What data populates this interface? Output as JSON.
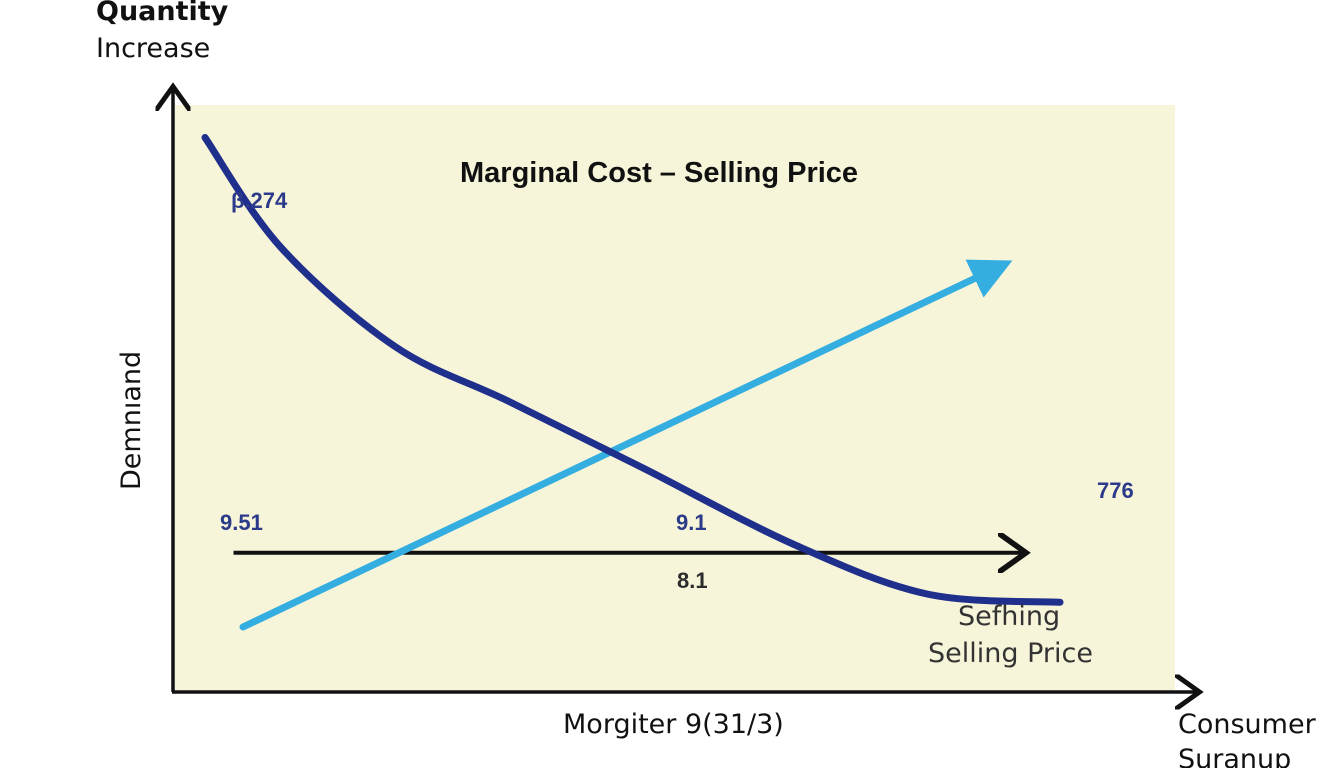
{
  "chart_data": {
    "type": "line",
    "title": "Marginal Cost – Selling Price",
    "y_axis_label_top": "Quantity",
    "y_axis_label_sub": "Increase",
    "y_axis_label_side": "Demnıand",
    "x_axis_label": "Morgiter 9(31/3)",
    "x_axis_corner_label_1": "Consumer",
    "x_axis_corner_label_2": "Suranup",
    "annotations": {
      "demand_start": "β.274",
      "demand_end": "776",
      "horizontal_left": "9.51",
      "horizontal_mid": "9.1",
      "horizontal_below": "8.1",
      "price_label_1": "Sefhing",
      "price_label_2": "Selling Price"
    },
    "series": [
      {
        "name": "",
        "color": "#1f2f8c",
        "role": "demand curve",
        "points": [
          [
            0.0,
            9.5
          ],
          [
            0.8,
            7.5
          ],
          [
            2.0,
            5.7
          ],
          [
            3.2,
            4.7
          ],
          [
            4.6,
            3.5
          ],
          [
            6.2,
            2.1
          ],
          [
            7.6,
            1.2
          ],
          [
            9.0,
            1.05
          ]
        ]
      },
      {
        "name": "",
        "color": "#34aee0",
        "role": "supply line with arrow",
        "points": [
          [
            0.4,
            0.6
          ],
          [
            8.3,
            7.1
          ]
        ]
      },
      {
        "name": "",
        "color": "#111111",
        "role": "horizontal arrow",
        "points": [
          [
            0.3,
            1.95
          ],
          [
            8.6,
            1.95
          ]
        ]
      }
    ],
    "xlim": [
      0,
      10
    ],
    "ylim": [
      0,
      10
    ],
    "grid": false,
    "legend": "none",
    "background_color": "#f7f5d9"
  }
}
